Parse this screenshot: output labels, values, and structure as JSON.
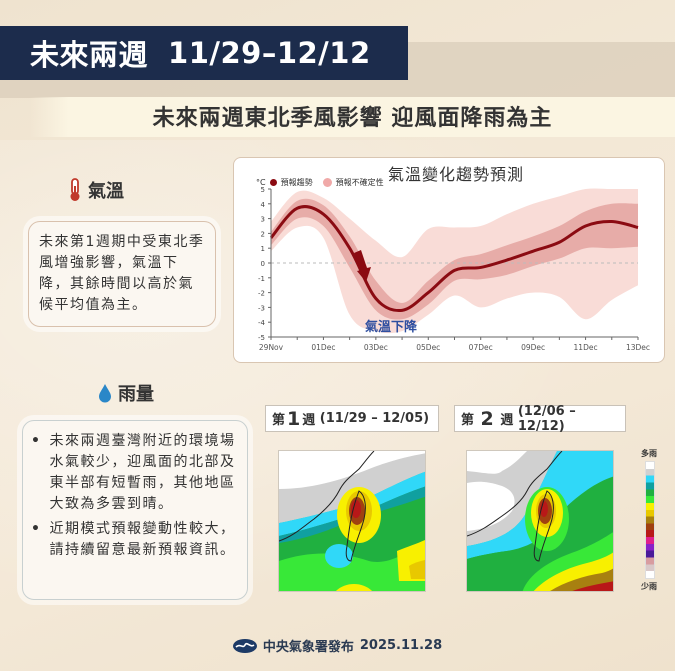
{
  "header": {
    "title": "未來兩週",
    "date_range": "11/29–12/12",
    "subtitle": "未來兩週東北季風影響 迎風面降雨為主"
  },
  "temperature": {
    "icon": "thermometer-icon",
    "heading": "氣溫",
    "text": "未來第1週期中受東北季風增強影響，氣溫下降，其餘時間以高於氣候平均值為主。"
  },
  "rainfall": {
    "icon": "water-drop-icon",
    "heading": "雨量",
    "bullets": [
      "未來兩週臺灣附近的環境場水氣較少，迎風面的北部及東半部有短暫雨，其他地區大致為多雲到晴。",
      "近期模式預報變動性較大，請持續留意最新預報資訊。"
    ]
  },
  "chart_data": {
    "type": "line",
    "title": "氣溫變化趨勢預測",
    "ylabel": "°C",
    "xlabel": "",
    "ylim": [
      -5,
      5
    ],
    "yticks": [
      5,
      4,
      3,
      2,
      1,
      0,
      -1,
      -2,
      -3,
      -4,
      -5
    ],
    "xticks": [
      "29Nov",
      "01Dec",
      "03Dec",
      "05Dec",
      "07Dec",
      "09Dec",
      "11Dec",
      "13Dec"
    ],
    "legend": [
      "預報趨勢",
      "預報不確定性"
    ],
    "annotation": "氣溫下降",
    "reference_line": 0,
    "x": [
      "29Nov",
      "30Nov",
      "01Dec",
      "02Dec",
      "03Dec",
      "04Dec",
      "05Dec",
      "06Dec",
      "07Dec",
      "08Dec",
      "09Dec",
      "10Dec",
      "11Dec",
      "12Dec",
      "13Dec"
    ],
    "series": [
      {
        "name": "預報趨勢",
        "values": [
          1.7,
          3.7,
          3.3,
          1.0,
          -2.4,
          -3.2,
          -2.0,
          -0.5,
          -0.3,
          0.2,
          0.8,
          1.4,
          2.5,
          2.8,
          2.4
        ]
      },
      {
        "name": "預報不確定性(內帶上緣)",
        "values": [
          2.1,
          4.2,
          3.9,
          1.8,
          -1.2,
          -2.7,
          -1.2,
          0.2,
          0.6,
          1.2,
          1.8,
          2.5,
          3.5,
          4.0,
          4.0
        ]
      },
      {
        "name": "預報不確定性(內帶下緣)",
        "values": [
          1.2,
          3.0,
          2.5,
          -0.3,
          -3.2,
          -3.8,
          -2.8,
          -1.2,
          -1.1,
          -0.8,
          -0.2,
          0.3,
          1.0,
          1.0,
          1.1
        ]
      },
      {
        "name": "預報不確定性(外帶上緣)",
        "values": [
          2.8,
          4.8,
          4.4,
          3.0,
          1.5,
          0.4,
          2.3,
          2.4,
          2.5,
          3.3,
          4.0,
          4.5,
          5.0,
          5.0,
          5.0
        ]
      },
      {
        "name": "預報不確定性(外帶下緣)",
        "values": [
          0.8,
          2.4,
          1.7,
          -3.5,
          -4.6,
          -4.6,
          -3.5,
          -2.2,
          -3.0,
          -2.4,
          -2.0,
          -2.3,
          -3.8,
          -2.5,
          -1.5
        ]
      }
    ],
    "colors": {
      "trend": "#8b0b12",
      "inner_band": "#e4a3a0",
      "outer_band": "#f9dcd7",
      "annotation": "#2f4fa0"
    }
  },
  "weekly_maps": [
    {
      "prefix": "第",
      "week": "1",
      "suffix": "週",
      "range": "(11/29 – 12/05)"
    },
    {
      "prefix": "第",
      "week": "2",
      "suffix": "週",
      "range": "(12/06 –12/12)"
    }
  ],
  "colorbar": {
    "top_label": "多雨",
    "bottom_label": "少雨",
    "colors": [
      "#ffffff",
      "#d9c8c8",
      "#d89ca0",
      "#4a1a9a",
      "#8a20c8",
      "#e01e8c",
      "#b81818",
      "#a04010",
      "#a88010",
      "#e8c800",
      "#f8f000",
      "#38e838",
      "#20b040",
      "#10a0a0",
      "#30d8f8",
      "#d0d0d0",
      "#ffffff"
    ]
  },
  "footer": {
    "logo": "cwa-logo-icon",
    "publisher": "中央氣象署發布",
    "date": "2025.11.28"
  }
}
